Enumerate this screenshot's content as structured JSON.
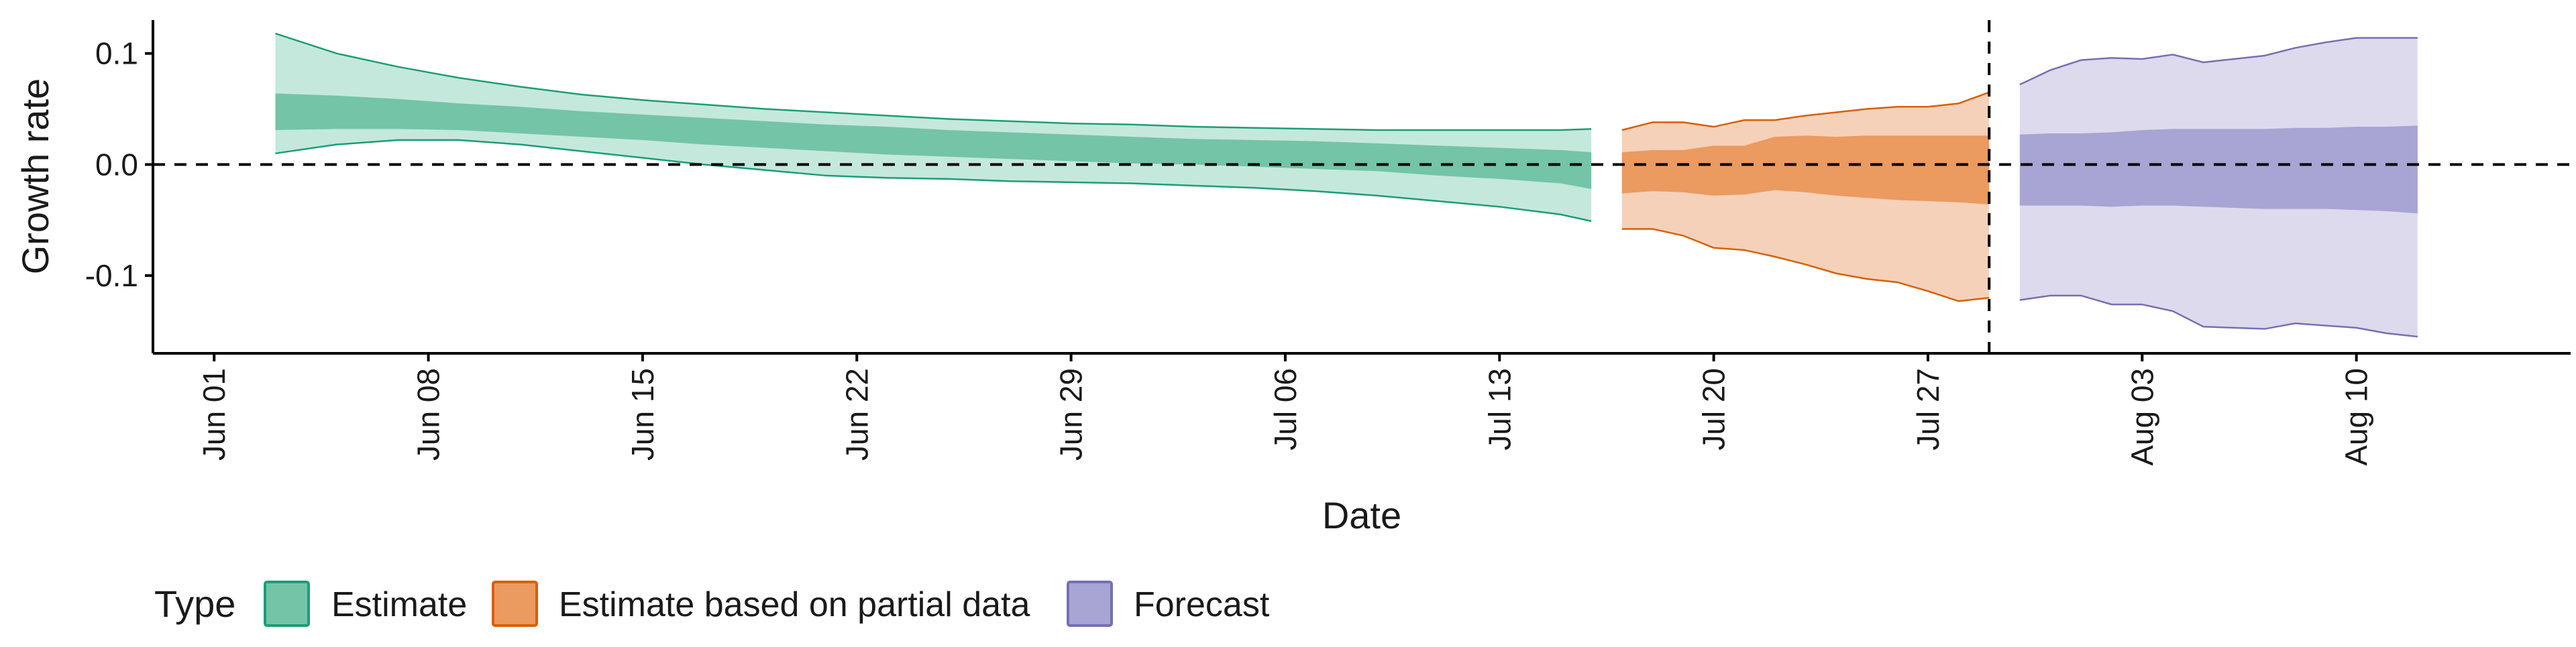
{
  "chart_data": {
    "type": "area",
    "xlabel": "Date",
    "ylabel": "Growth rate",
    "ylim": [
      -0.17,
      0.13
    ],
    "yticks": [
      -0.1,
      0.0,
      0.1
    ],
    "ytick_labels": [
      "-0.1",
      "0.0",
      "0.1"
    ],
    "xlim": [
      "2020-05-30",
      "2020-08-17"
    ],
    "xticks": [
      "2020-06-01",
      "2020-06-08",
      "2020-06-15",
      "2020-06-22",
      "2020-06-29",
      "2020-07-06",
      "2020-07-13",
      "2020-07-20",
      "2020-07-27",
      "2020-08-03",
      "2020-08-10"
    ],
    "xtick_labels": [
      "Jun 01",
      "Jun 08",
      "Jun 15",
      "Jun 22",
      "Jun 29",
      "Jul 06",
      "Jul 13",
      "Jul 20",
      "Jul 27",
      "Aug 03",
      "Aug 10"
    ],
    "reference_line_y": 0.0,
    "vertical_line_x": "2020-07-29",
    "legend": {
      "title": "Type",
      "position": "bottom",
      "entries": [
        {
          "label": "Estimate",
          "fill": "#74c4a8",
          "stroke": "#1b9e77"
        },
        {
          "label": "Estimate based on partial data",
          "fill": "#eb9a60",
          "stroke": "#d95f02"
        },
        {
          "label": "Forecast",
          "fill": "#a8a4d3",
          "stroke": "#7570b3"
        }
      ]
    },
    "series": [
      {
        "name": "Estimate",
        "color_outer": "#c5e8dc",
        "color_inner": "#74c4a8",
        "color_line": "#1b9e77",
        "x": [
          "2020-06-03",
          "2020-06-05",
          "2020-06-07",
          "2020-06-09",
          "2020-06-11",
          "2020-06-13",
          "2020-06-15",
          "2020-06-17",
          "2020-06-19",
          "2020-06-21",
          "2020-06-23",
          "2020-06-25",
          "2020-06-27",
          "2020-06-29",
          "2020-07-01",
          "2020-07-03",
          "2020-07-05",
          "2020-07-07",
          "2020-07-09",
          "2020-07-11",
          "2020-07-13",
          "2020-07-15",
          "2020-07-16"
        ],
        "outer_lo": [
          0.01,
          0.018,
          0.022,
          0.022,
          0.018,
          0.012,
          0.006,
          0.0,
          -0.005,
          -0.01,
          -0.012,
          -0.013,
          -0.015,
          -0.016,
          -0.017,
          -0.019,
          -0.021,
          -0.024,
          -0.028,
          -0.033,
          -0.038,
          -0.045,
          -0.051
        ],
        "outer_hi": [
          0.118,
          0.1,
          0.088,
          0.078,
          0.07,
          0.063,
          0.058,
          0.054,
          0.05,
          0.047,
          0.044,
          0.041,
          0.039,
          0.037,
          0.036,
          0.034,
          0.033,
          0.032,
          0.031,
          0.031,
          0.031,
          0.031,
          0.032
        ],
        "inner_lo": [
          0.031,
          0.032,
          0.032,
          0.031,
          0.028,
          0.025,
          0.022,
          0.018,
          0.015,
          0.012,
          0.009,
          0.007,
          0.005,
          0.003,
          0.001,
          0.0,
          -0.002,
          -0.004,
          -0.006,
          -0.01,
          -0.013,
          -0.017,
          -0.022
        ],
        "inner_hi": [
          0.064,
          0.062,
          0.059,
          0.055,
          0.052,
          0.048,
          0.045,
          0.042,
          0.039,
          0.036,
          0.034,
          0.031,
          0.029,
          0.027,
          0.025,
          0.023,
          0.022,
          0.021,
          0.019,
          0.017,
          0.015,
          0.013,
          0.011
        ]
      },
      {
        "name": "Estimate based on partial data",
        "color_outer": "#f5d1b9",
        "color_inner": "#eb9a60",
        "color_line": "#d95f02",
        "x": [
          "2020-07-17",
          "2020-07-18",
          "2020-07-19",
          "2020-07-20",
          "2020-07-21",
          "2020-07-22",
          "2020-07-23",
          "2020-07-24",
          "2020-07-25",
          "2020-07-26",
          "2020-07-27",
          "2020-07-28",
          "2020-07-29"
        ],
        "outer_lo": [
          -0.058,
          -0.058,
          -0.064,
          -0.075,
          -0.077,
          -0.083,
          -0.09,
          -0.098,
          -0.103,
          -0.106,
          -0.114,
          -0.123,
          -0.12
        ],
        "outer_hi": [
          0.031,
          0.038,
          0.038,
          0.034,
          0.04,
          0.04,
          0.044,
          0.047,
          0.05,
          0.052,
          0.052,
          0.055,
          0.065
        ],
        "inner_lo": [
          -0.026,
          -0.024,
          -0.025,
          -0.028,
          -0.027,
          -0.023,
          -0.025,
          -0.028,
          -0.03,
          -0.032,
          -0.033,
          -0.034,
          -0.036
        ],
        "inner_hi": [
          0.011,
          0.013,
          0.013,
          0.017,
          0.017,
          0.025,
          0.026,
          0.025,
          0.026,
          0.026,
          0.026,
          0.026,
          0.026
        ]
      },
      {
        "name": "Forecast",
        "color_outer": "#dcdaec",
        "color_inner": "#a8a4d3",
        "color_line": "#7570b3",
        "x": [
          "2020-07-30",
          "2020-07-31",
          "2020-08-01",
          "2020-08-02",
          "2020-08-03",
          "2020-08-04",
          "2020-08-05",
          "2020-08-06",
          "2020-08-07",
          "2020-08-08",
          "2020-08-09",
          "2020-08-10",
          "2020-08-11",
          "2020-08-12"
        ],
        "outer_lo": [
          -0.122,
          -0.118,
          -0.118,
          -0.126,
          -0.126,
          -0.132,
          -0.146,
          -0.147,
          -0.148,
          -0.143,
          -0.145,
          -0.147,
          -0.152,
          -0.155
        ],
        "outer_hi": [
          0.072,
          0.085,
          0.094,
          0.096,
          0.095,
          0.099,
          0.092,
          0.095,
          0.098,
          0.105,
          0.11,
          0.114,
          0.114,
          0.114
        ],
        "inner_lo": [
          -0.037,
          -0.037,
          -0.037,
          -0.038,
          -0.037,
          -0.037,
          -0.038,
          -0.039,
          -0.04,
          -0.04,
          -0.04,
          -0.041,
          -0.042,
          -0.044
        ],
        "inner_hi": [
          0.027,
          0.028,
          0.028,
          0.029,
          0.031,
          0.032,
          0.032,
          0.032,
          0.032,
          0.033,
          0.033,
          0.034,
          0.034,
          0.035
        ]
      }
    ]
  }
}
